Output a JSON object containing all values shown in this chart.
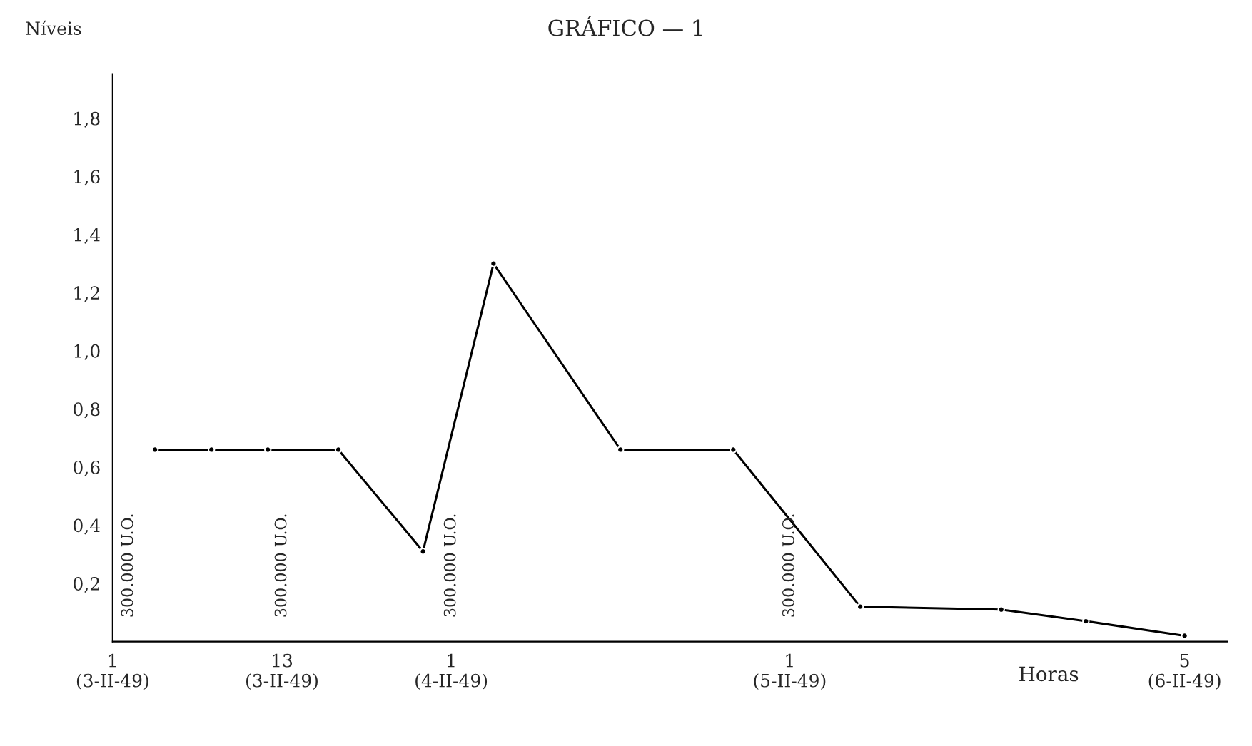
{
  "chart_data": {
    "type": "line",
    "title": "GRÁFICO — 1",
    "ylabel": "Níveis",
    "xlabel": "Horas",
    "x": [
      "1949-02-03T04:00",
      "1949-02-03T08:00",
      "1949-02-03T12:00",
      "1949-02-03T17:00",
      "1949-02-03T23:00",
      "1949-02-04T04:00",
      "1949-02-04T13:00",
      "1949-02-04T21:00",
      "1949-02-05T06:00",
      "1949-02-05T16:00",
      "1949-02-05T22:00",
      "1949-02-06T05:00"
    ],
    "series": [
      {
        "color": "#000000",
        "values": [
          0.66,
          0.66,
          0.66,
          0.66,
          0.31,
          1.3,
          0.66,
          0.66,
          0.12,
          0.11,
          0.07,
          0.02
        ]
      }
    ],
    "xlim": [
      "1949-02-03T01:00",
      "1949-02-06T08:00"
    ],
    "ylim": [
      0,
      1.95
    ],
    "xticks": [
      {
        "value": "1949-02-03T01:00",
        "label": "1\n(3-II-49)"
      },
      {
        "value": "1949-02-03T13:00",
        "label": "13\n(3-II-49)"
      },
      {
        "value": "1949-02-04T01:00",
        "label": "1\n(4-II-49)"
      },
      {
        "value": "1949-02-05T01:00",
        "label": "1\n(5-II-49)"
      },
      {
        "value": "1949-02-06T05:00",
        "label": "5\n(6-II-49)"
      }
    ],
    "yticks": [
      {
        "value": 0.2,
        "label": "0,2"
      },
      {
        "value": 0.4,
        "label": "0,4"
      },
      {
        "value": 0.6,
        "label": "0,6"
      },
      {
        "value": 0.8,
        "label": "0,8"
      },
      {
        "value": 1.0,
        "label": "1,0"
      },
      {
        "value": 1.2,
        "label": "1,2"
      },
      {
        "value": 1.4,
        "label": "1,4"
      },
      {
        "value": 1.6,
        "label": "1,6"
      },
      {
        "value": 1.8,
        "label": "1,8"
      }
    ],
    "annotations": [
      "300.000 U.O.",
      "300.000 U.O.",
      "300.000 U.O.",
      "300.000 U.O."
    ],
    "grid": false,
    "legend": false,
    "marker": "circle",
    "line_style": "solid"
  }
}
